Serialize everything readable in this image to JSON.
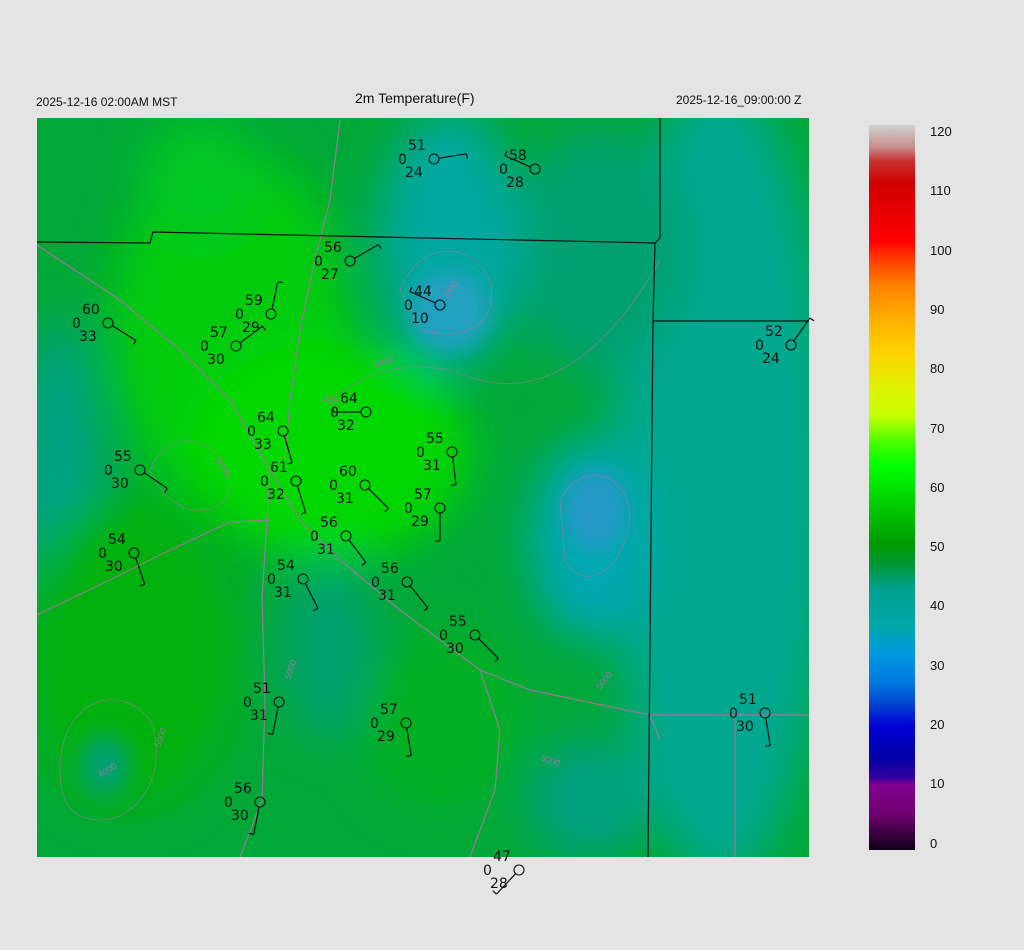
{
  "header": {
    "left": "2025-12-16 02:00AM MST",
    "title": "2m Temperature(F)",
    "right": "2025-12-16_09:00:00 Z"
  },
  "colorbar": {
    "ticks": [
      "120",
      "110",
      "100",
      "90",
      "80",
      "70",
      "60",
      "50",
      "40",
      "30",
      "20",
      "10",
      "0"
    ],
    "range": [
      0,
      120
    ],
    "colors": {
      "0": "#10001a",
      "10": "#800090",
      "20": "#0000b8",
      "30": "#0070e0",
      "40": "#00a8a8",
      "50": "#00a050",
      "60": "#00b800",
      "70": "#00ff00",
      "80": "#d8f000",
      "90": "#ffc800",
      "100": "#ff4000",
      "110": "#e00000",
      "120": "#d0d0d0"
    }
  },
  "stations": [
    {
      "temp": "51",
      "pressure": "0",
      "dewpoint": "24",
      "wind_dir_deg": 81
    },
    {
      "temp": "58",
      "pressure": "0",
      "dewpoint": "28",
      "wind_dir_deg": 294
    },
    {
      "temp": "56",
      "pressure": "0",
      "dewpoint": "27",
      "wind_dir_deg": 60
    },
    {
      "temp": "44",
      "pressure": "0",
      "dewpoint": "10",
      "wind_dir_deg": 294
    },
    {
      "temp": "59",
      "pressure": "0",
      "dewpoint": "29",
      "wind_dir_deg": 12
    },
    {
      "temp": "60",
      "pressure": "0",
      "dewpoint": "33",
      "wind_dir_deg": 122
    },
    {
      "temp": "57",
      "pressure": "0",
      "dewpoint": "30",
      "wind_dir_deg": 53
    },
    {
      "temp": "64",
      "pressure": "0",
      "dewpoint": "32",
      "wind_dir_deg": 270
    },
    {
      "temp": "64",
      "pressure": "0",
      "dewpoint": "33",
      "wind_dir_deg": 164
    },
    {
      "temp": "55",
      "pressure": "0",
      "dewpoint": "31",
      "wind_dir_deg": 173
    },
    {
      "temp": "55",
      "pressure": "0",
      "dewpoint": "30",
      "wind_dir_deg": 124
    },
    {
      "temp": "61",
      "pressure": "0",
      "dewpoint": "32",
      "wind_dir_deg": 163
    },
    {
      "temp": "60",
      "pressure": "0",
      "dewpoint": "31",
      "wind_dir_deg": 135
    },
    {
      "temp": "57",
      "pressure": "0",
      "dewpoint": "29",
      "wind_dir_deg": 180
    },
    {
      "temp": "54",
      "pressure": "0",
      "dewpoint": "30",
      "wind_dir_deg": 161
    },
    {
      "temp": "56",
      "pressure": "0",
      "dewpoint": "31",
      "wind_dir_deg": 143
    },
    {
      "temp": "54",
      "pressure": "0",
      "dewpoint": "31",
      "wind_dir_deg": 153
    },
    {
      "temp": "56",
      "pressure": "0",
      "dewpoint": "31",
      "wind_dir_deg": 141
    },
    {
      "temp": "55",
      "pressure": "0",
      "dewpoint": "30",
      "wind_dir_deg": 135
    },
    {
      "temp": "51",
      "pressure": "0",
      "dewpoint": "31",
      "wind_dir_deg": 191
    },
    {
      "temp": "57",
      "pressure": "0",
      "dewpoint": "29",
      "wind_dir_deg": 171
    },
    {
      "temp": "56",
      "pressure": "0",
      "dewpoint": "30",
      "wind_dir_deg": 191
    },
    {
      "temp": "47",
      "pressure": "0",
      "dewpoint": "28",
      "wind_dir_deg": 223
    },
    {
      "temp": "52",
      "pressure": "0",
      "dewpoint": "24",
      "wind_dir_deg": 35
    },
    {
      "temp": "51",
      "pressure": "0",
      "dewpoint": "30",
      "wind_dir_deg": 171
    }
  ],
  "contour_labels": [
    "7000",
    "6000",
    "3000",
    "3000",
    "5000",
    "4000",
    "5000",
    "3000",
    "5000"
  ]
}
